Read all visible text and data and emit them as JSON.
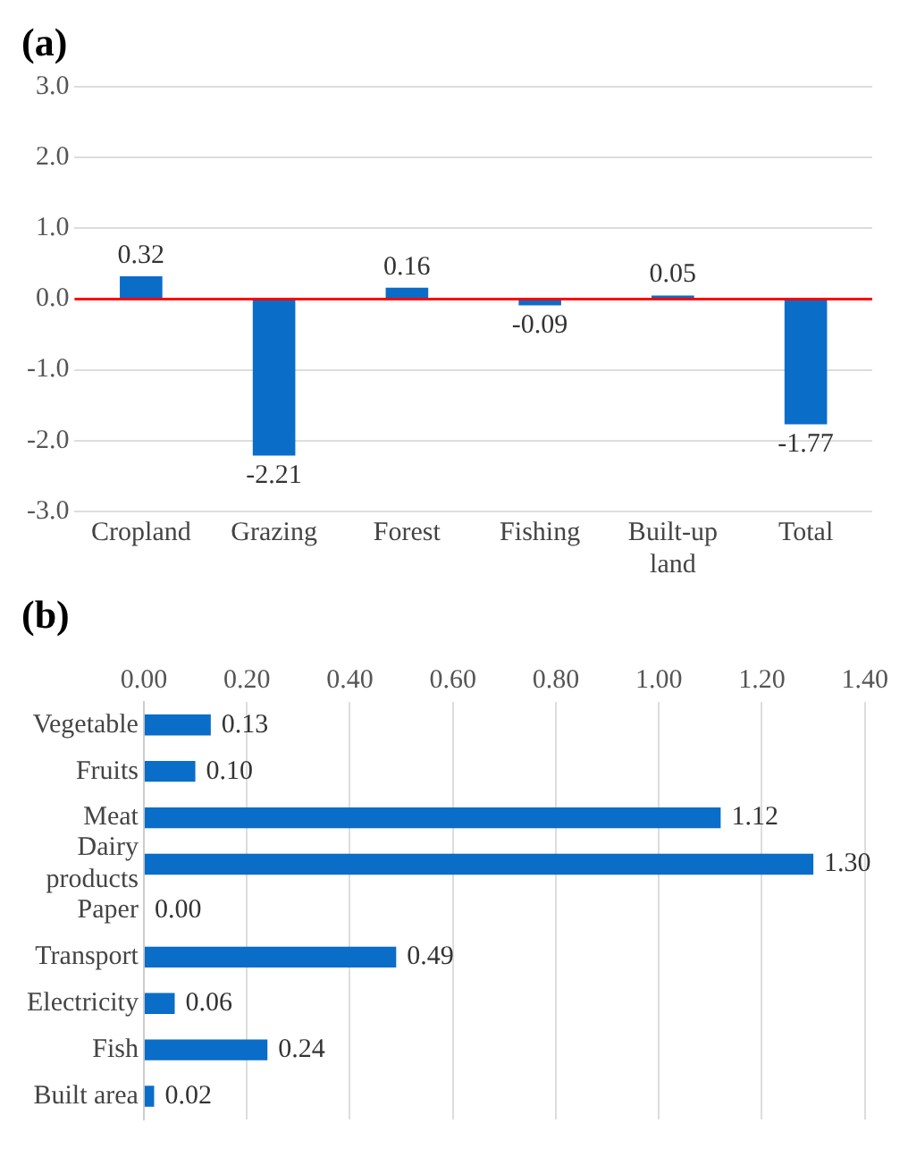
{
  "chart_data": [
    {
      "type": "bar",
      "title": "(a)",
      "categories": [
        "Cropland",
        "Grazing",
        "Forest",
        "Fishing",
        "Built-up land",
        "Total"
      ],
      "values": [
        0.32,
        -2.21,
        0.16,
        -0.09,
        0.05,
        -1.77
      ],
      "color": "#0a6dc8",
      "ylim": [
        -3,
        3
      ],
      "yticks": [
        {
          "value": -3,
          "label": "-3.0"
        },
        {
          "value": -2,
          "label": "-2.0"
        },
        {
          "value": -1,
          "label": "-1.0"
        },
        {
          "value": 0,
          "label": "0.0"
        },
        {
          "value": 1,
          "label": "1.0"
        },
        {
          "value": 2,
          "label": "2.0"
        },
        {
          "value": 3,
          "label": "3.0"
        }
      ],
      "grid": "y",
      "data_labels": true,
      "ref_lines": [
        {
          "axis": "y",
          "value": 0,
          "color": "#ff0000"
        }
      ]
    },
    {
      "type": "bar",
      "title": "(b)",
      "orientation": "horizontal",
      "categories": [
        "Vegetable",
        "Fruits",
        "Meat",
        "Dairy products",
        "Paper",
        "Transport",
        "Electricity",
        "Fish",
        "Built area"
      ],
      "values": [
        0.13,
        0.1,
        1.12,
        1.3,
        0.0,
        0.49,
        0.06,
        0.24,
        0.02
      ],
      "value_labels": [
        "0.13",
        "0.10",
        "1.12",
        "1.30",
        "0.00",
        "0.49",
        "0.06",
        "0.24",
        "0.02"
      ],
      "color": "#0a6dc8",
      "xlim": [
        0,
        1.4
      ],
      "xticks": [
        {
          "value": 0,
          "label": "0.00"
        },
        {
          "value": 0.2,
          "label": "0.20"
        },
        {
          "value": 0.4,
          "label": "0.40"
        },
        {
          "value": 0.6,
          "label": "0.60"
        },
        {
          "value": 0.8,
          "label": "0.80"
        },
        {
          "value": 1,
          "label": "1.00"
        },
        {
          "value": 1.2,
          "label": "1.20"
        },
        {
          "value": 1.4,
          "label": "1.40"
        }
      ],
      "grid": "x"
    }
  ]
}
